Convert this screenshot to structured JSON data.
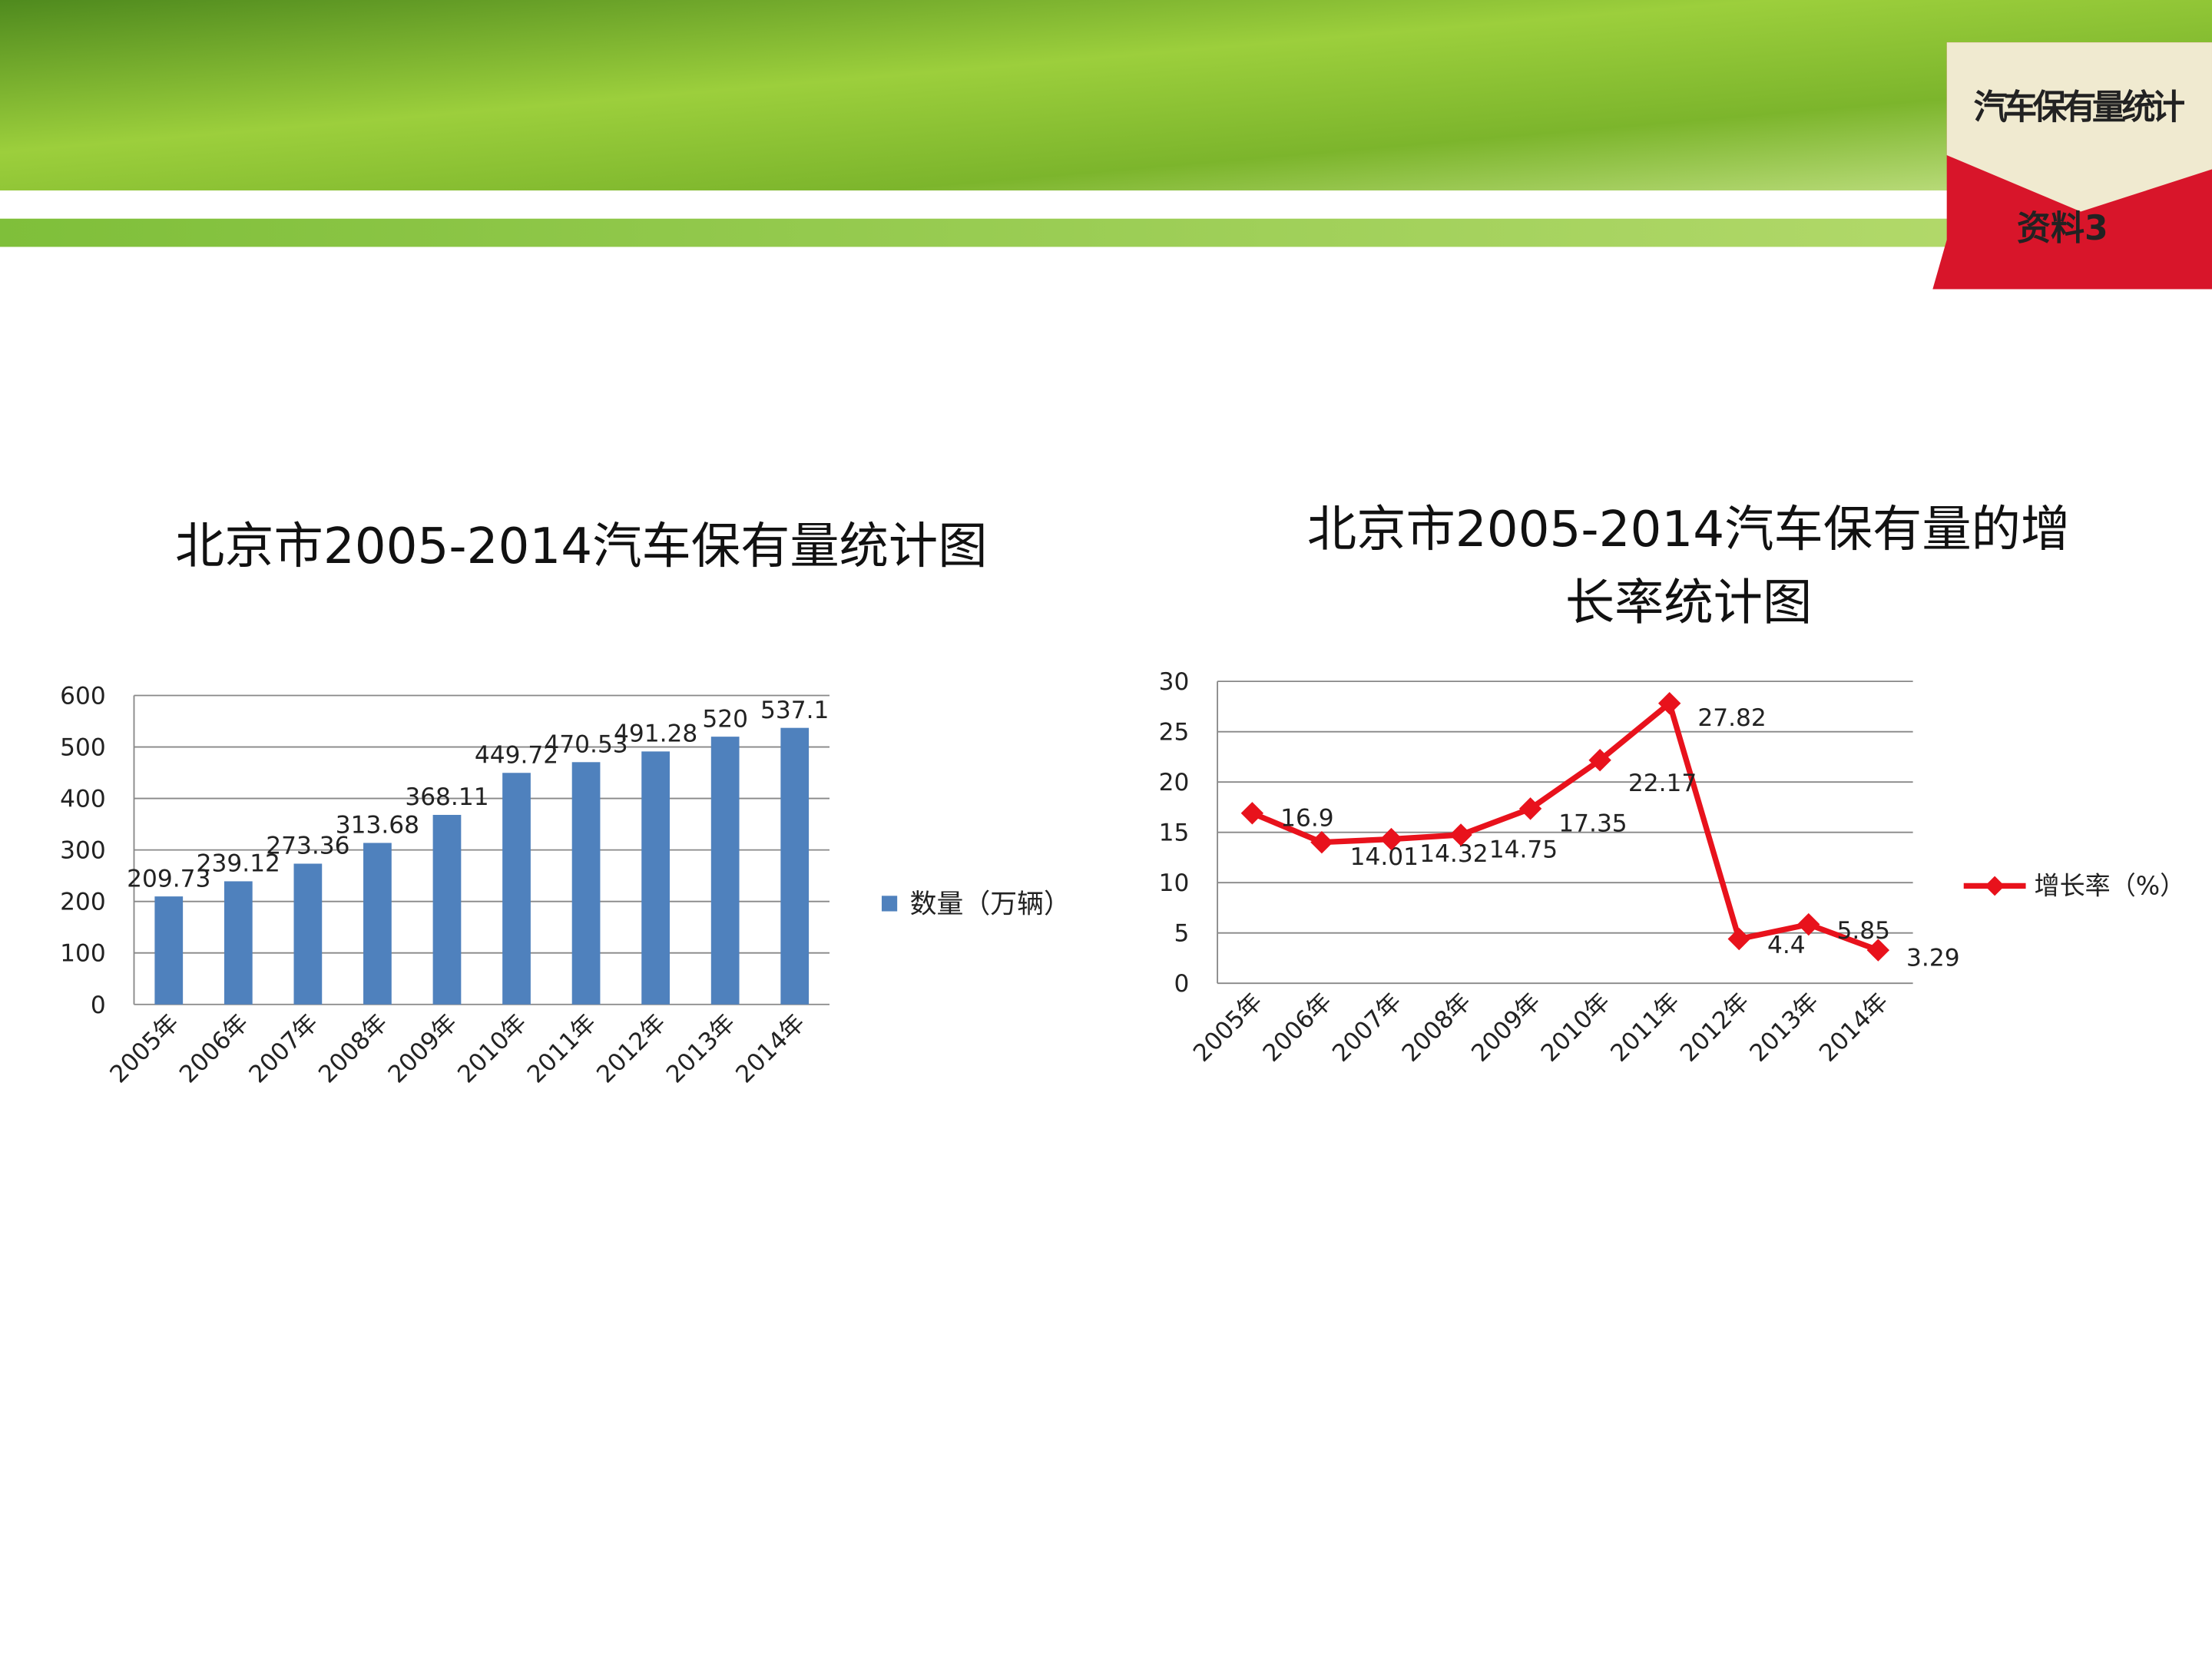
{
  "badge": {
    "title": "汽车保有量统计",
    "label": "资料3"
  },
  "chart_data": [
    {
      "type": "bar",
      "title": "北京市2005-2014汽车保有量统计图",
      "categories": [
        "2005年",
        "2006年",
        "2007年",
        "2008年",
        "2009年",
        "2010年",
        "2011年",
        "2012年",
        "2013年",
        "2014年"
      ],
      "series": [
        {
          "name": "数量（万辆）",
          "color": "#4f81bd",
          "values": [
            209.73,
            239.12,
            273.36,
            313.68,
            368.11,
            449.72,
            470.53,
            491.28,
            520,
            537.1
          ]
        }
      ],
      "ylim": [
        0,
        600
      ],
      "yticks": [
        0,
        100,
        200,
        300,
        400,
        500,
        600
      ],
      "grid": true,
      "legend": "right"
    },
    {
      "type": "line",
      "title": "北京市2005-2014汽车保有量的增长率统计图",
      "categories": [
        "2005年",
        "2006年",
        "2007年",
        "2008年",
        "2009年",
        "2010年",
        "2011年",
        "2012年",
        "2013年",
        "2014年"
      ],
      "series": [
        {
          "name": "增长率（%）",
          "color": "#e8121c",
          "values": [
            16.9,
            14.01,
            14.32,
            14.75,
            17.35,
            22.17,
            27.82,
            4.4,
            5.85,
            3.29
          ]
        }
      ],
      "ylim": [
        0,
        30
      ],
      "yticks": [
        0,
        5,
        10,
        15,
        20,
        25,
        30
      ],
      "grid": true,
      "legend": "right"
    }
  ]
}
